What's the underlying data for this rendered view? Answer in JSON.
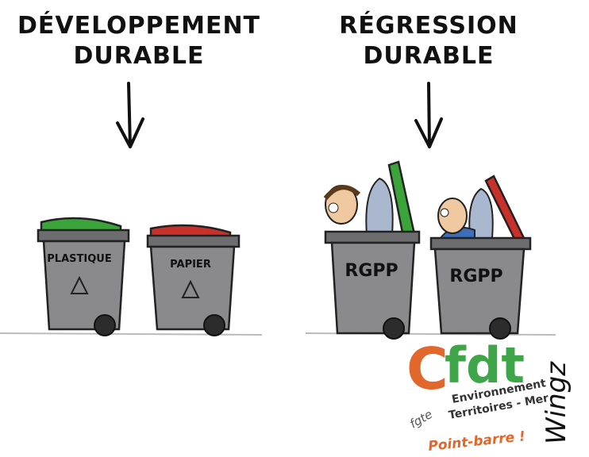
{
  "panels": [
    {
      "title": [
        "DÉVELOPPEMENT",
        "DURABLE"
      ],
      "bins": [
        {
          "label": "PLASTIQUE"
        },
        {
          "label": "PAPIER"
        }
      ]
    },
    {
      "title": [
        "RÉGRESSION",
        "DURABLE"
      ],
      "bins": [
        {
          "label": "RGPP"
        },
        {
          "label": "RGPP"
        }
      ]
    }
  ],
  "logo": {
    "mark": [
      "C",
      "fdt"
    ],
    "prefix": "fgte",
    "lines": [
      "Environnement",
      "Territoires - Mer"
    ],
    "slogan": "Point-barre !"
  },
  "signature": "Wingz"
}
